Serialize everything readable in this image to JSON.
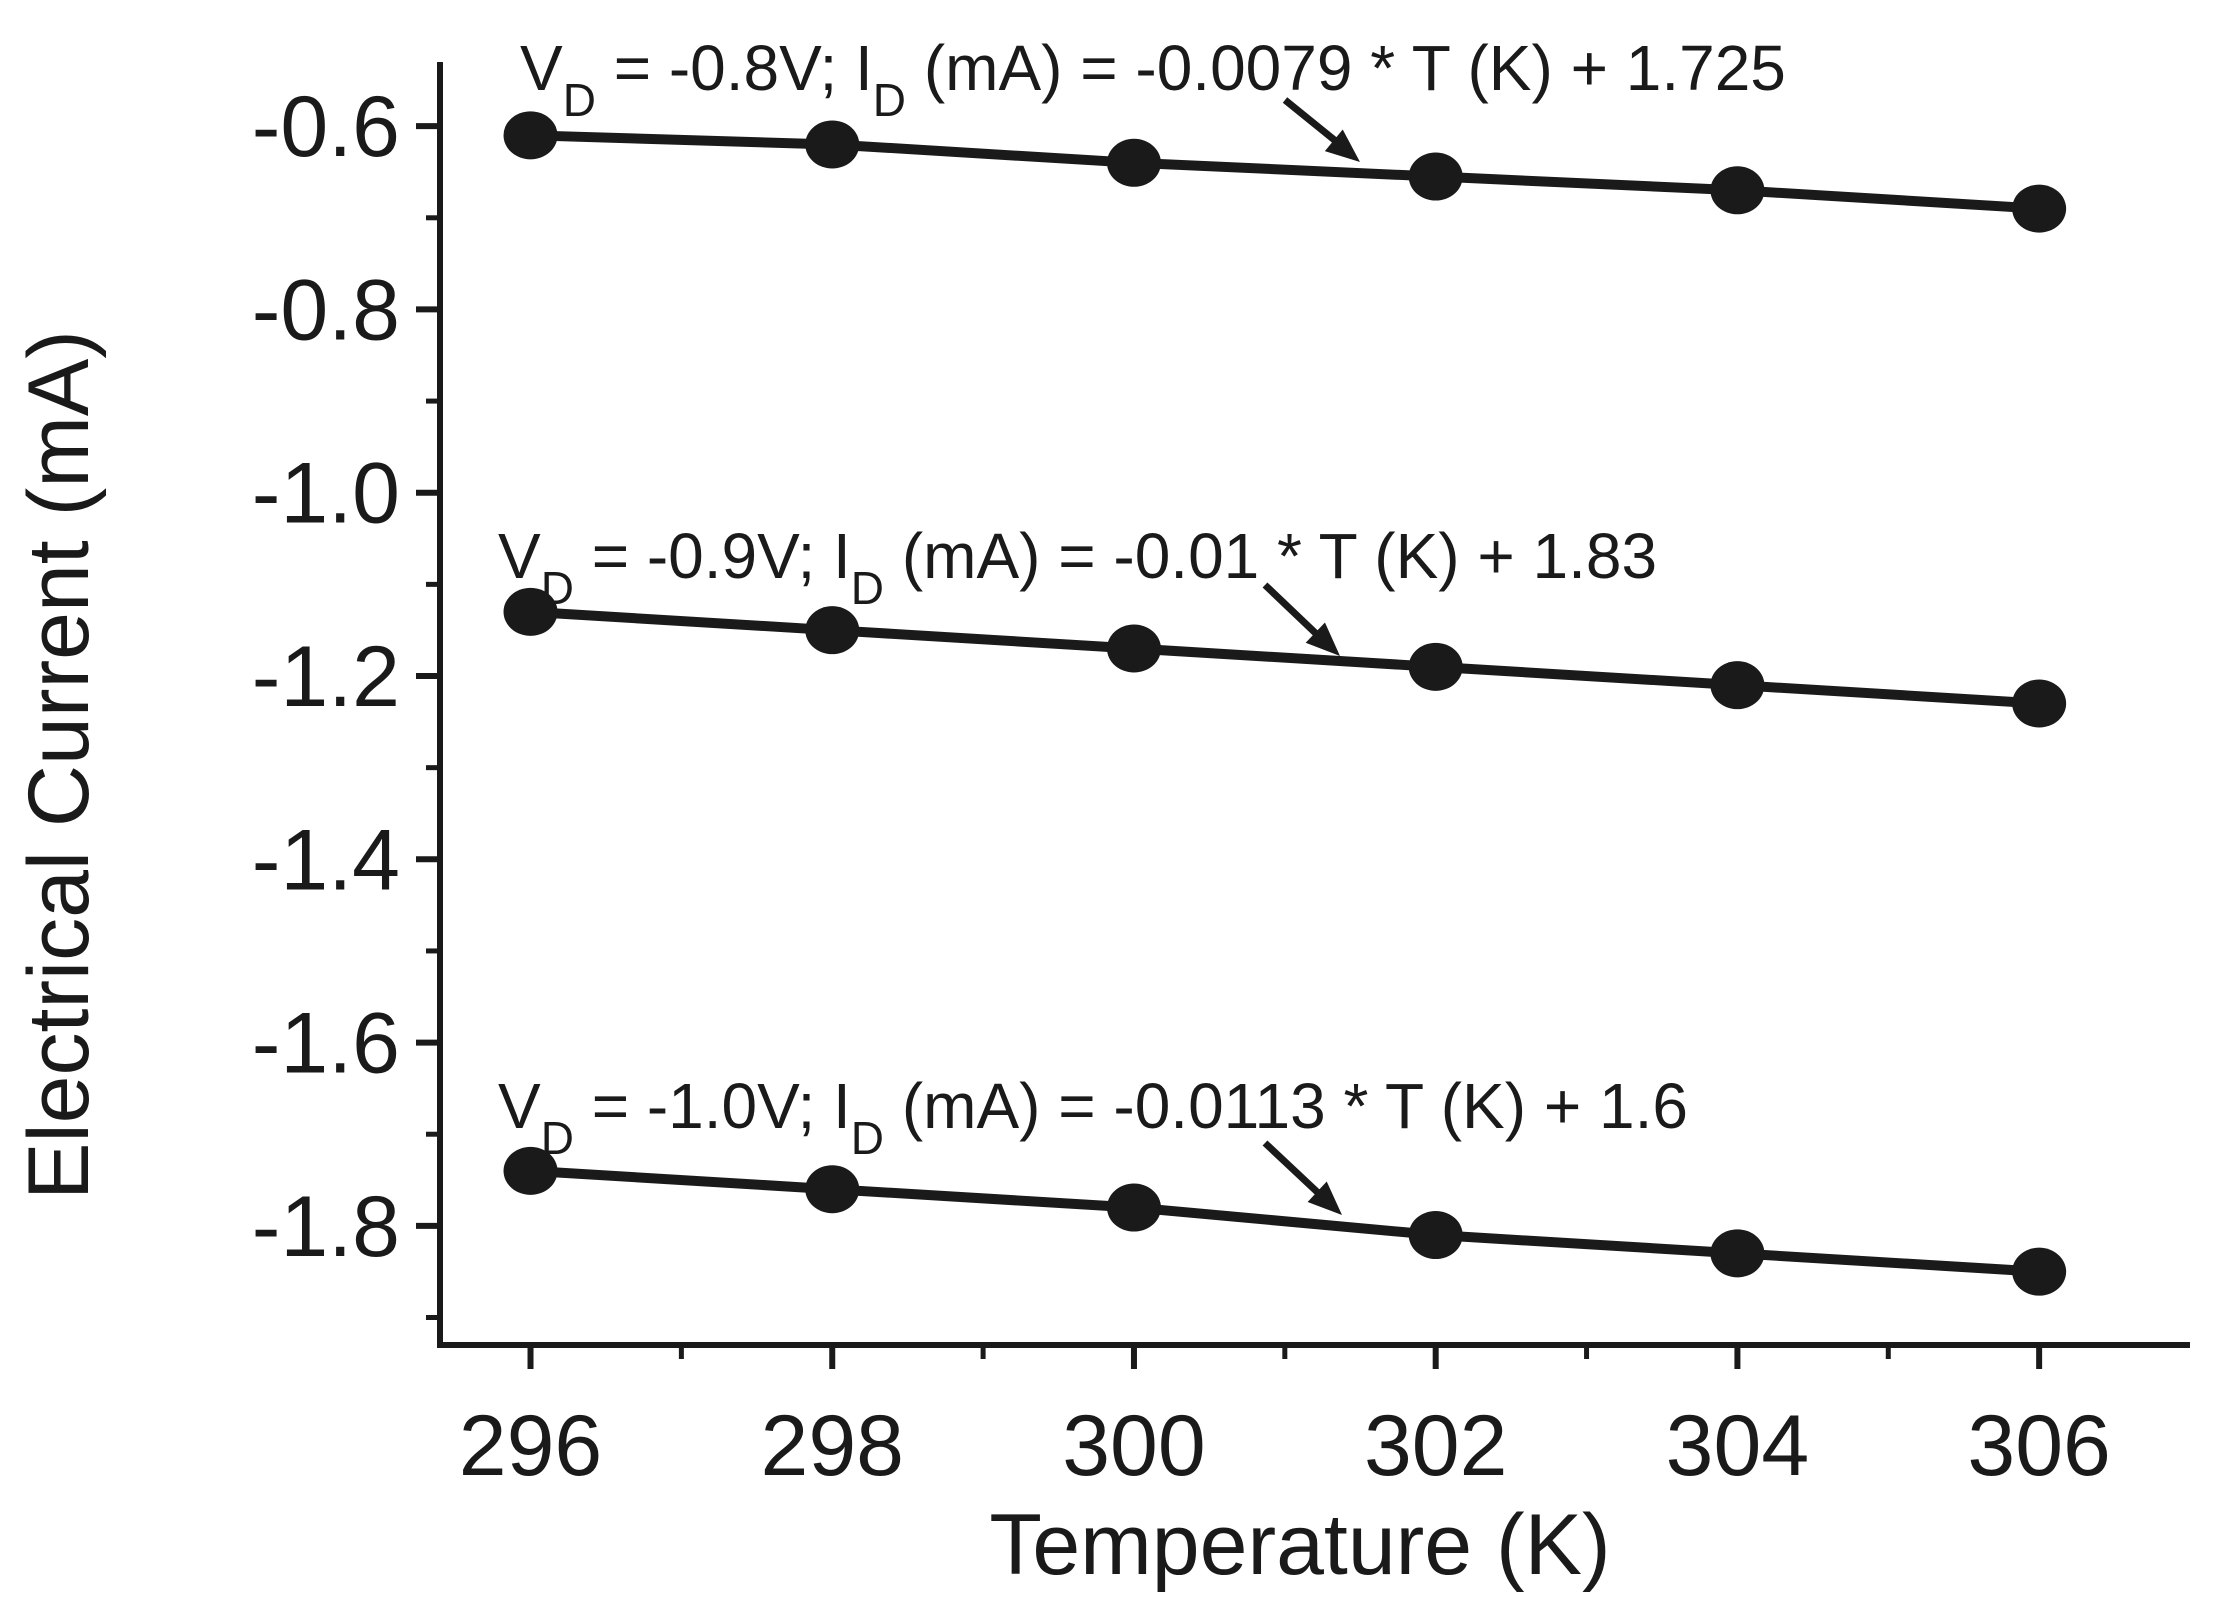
{
  "chart_data": {
    "type": "line",
    "title": "",
    "xlabel": "Temperature (K)",
    "ylabel": "Electrical Current (mA)",
    "xlim": [
      295.4,
      307.0
    ],
    "ylim": [
      -1.93,
      -0.53
    ],
    "x_ticks": [
      296,
      298,
      300,
      302,
      304,
      306
    ],
    "x_tick_labels": [
      "296",
      "298",
      "300",
      "302",
      "304",
      "306"
    ],
    "y_ticks": [
      -0.6,
      -0.8,
      -1.0,
      -1.2,
      -1.4,
      -1.6,
      -1.8
    ],
    "y_tick_labels": [
      "-0.6",
      "-0.8",
      "-1.0",
      "-1.2",
      "-1.4",
      "-1.6",
      "-1.8"
    ],
    "grid": false,
    "legend": "none",
    "x": [
      296,
      298,
      300,
      302,
      304,
      306
    ],
    "series": [
      {
        "name": "VD = -0.8V",
        "values": [
          -0.61,
          -0.62,
          -0.64,
          -0.655,
          -0.67,
          -0.69
        ],
        "annotation": {
          "prefix": "V",
          "sub1": "D",
          "mid": " = -0.8V; I",
          "sub2": "D",
          "suffix": " (mA) = -0.0079 * T (K) + 1.725"
        }
      },
      {
        "name": "VD = -0.9V",
        "values": [
          -1.13,
          -1.15,
          -1.17,
          -1.19,
          -1.21,
          -1.23
        ],
        "annotation": {
          "prefix": "V",
          "sub1": "D",
          "mid": " = -0.9V; I",
          "sub2": "D",
          "suffix": " (mA) = -0.01 * T (K) + 1.83"
        }
      },
      {
        "name": "VD = -1.0V",
        "values": [
          -1.74,
          -1.76,
          -1.78,
          -1.81,
          -1.83,
          -1.85
        ],
        "annotation": {
          "prefix": "V",
          "sub1": "D",
          "mid": " = -1.0V; I",
          "sub2": "D",
          "suffix": " (mA) = -0.0113 * T (K) + 1.6"
        }
      }
    ]
  }
}
